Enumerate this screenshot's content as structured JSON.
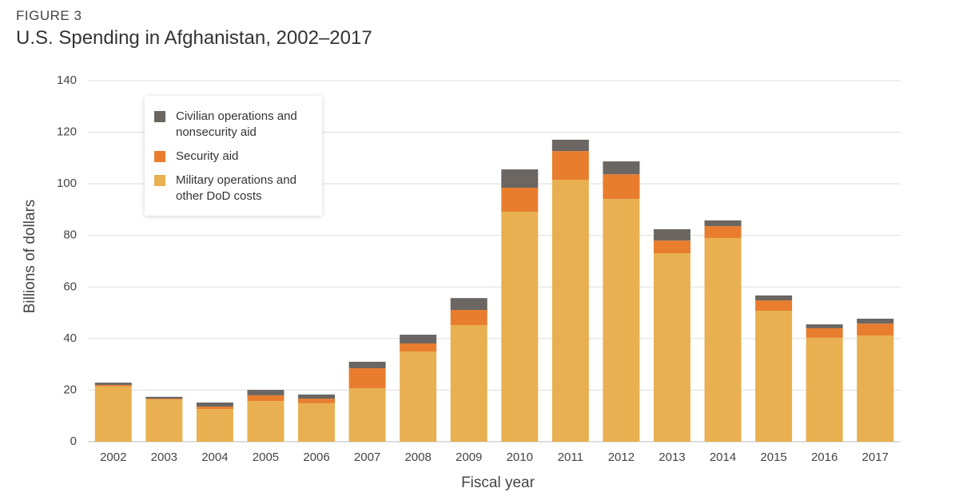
{
  "figure_label": "FIGURE 3",
  "chart_data": {
    "type": "stacked_bar",
    "title": "U.S. Spending in Afghanistan, 2002–2017",
    "x_label": "Fiscal year",
    "y_label": "Billions of dollars",
    "categories": [
      "2002",
      "2003",
      "2004",
      "2005",
      "2006",
      "2007",
      "2008",
      "2009",
      "2010",
      "2011",
      "2012",
      "2013",
      "2014",
      "2015",
      "2016",
      "2017"
    ],
    "series": [
      {
        "name": "Military operations and other DoD costs",
        "color": "#e8b050",
        "values": [
          21.5,
          16.4,
          12.7,
          15.8,
          14.9,
          20.7,
          35.0,
          45.2,
          89.2,
          101.6,
          94.1,
          73.1,
          79.0,
          50.8,
          40.3,
          41.2
        ]
      },
      {
        "name": "Security aid",
        "color": "#e87d2e",
        "values": [
          0.5,
          0.3,
          0.9,
          2.2,
          1.8,
          7.8,
          3.1,
          5.9,
          9.3,
          11.1,
          9.6,
          4.9,
          4.6,
          4.0,
          3.7,
          4.6
        ]
      },
      {
        "name": "Civilian operations and nonsecurity aid",
        "color": "#6b6662",
        "values": [
          0.9,
          0.7,
          1.6,
          2.1,
          1.6,
          2.5,
          3.4,
          4.6,
          7.1,
          4.4,
          5.0,
          4.4,
          2.2,
          1.9,
          1.5,
          1.9
        ]
      }
    ],
    "ylim": [
      0,
      140
    ],
    "yticks": [
      0,
      20,
      40,
      60,
      80,
      100,
      120,
      140
    ],
    "grid": true,
    "legend": "upper left"
  }
}
